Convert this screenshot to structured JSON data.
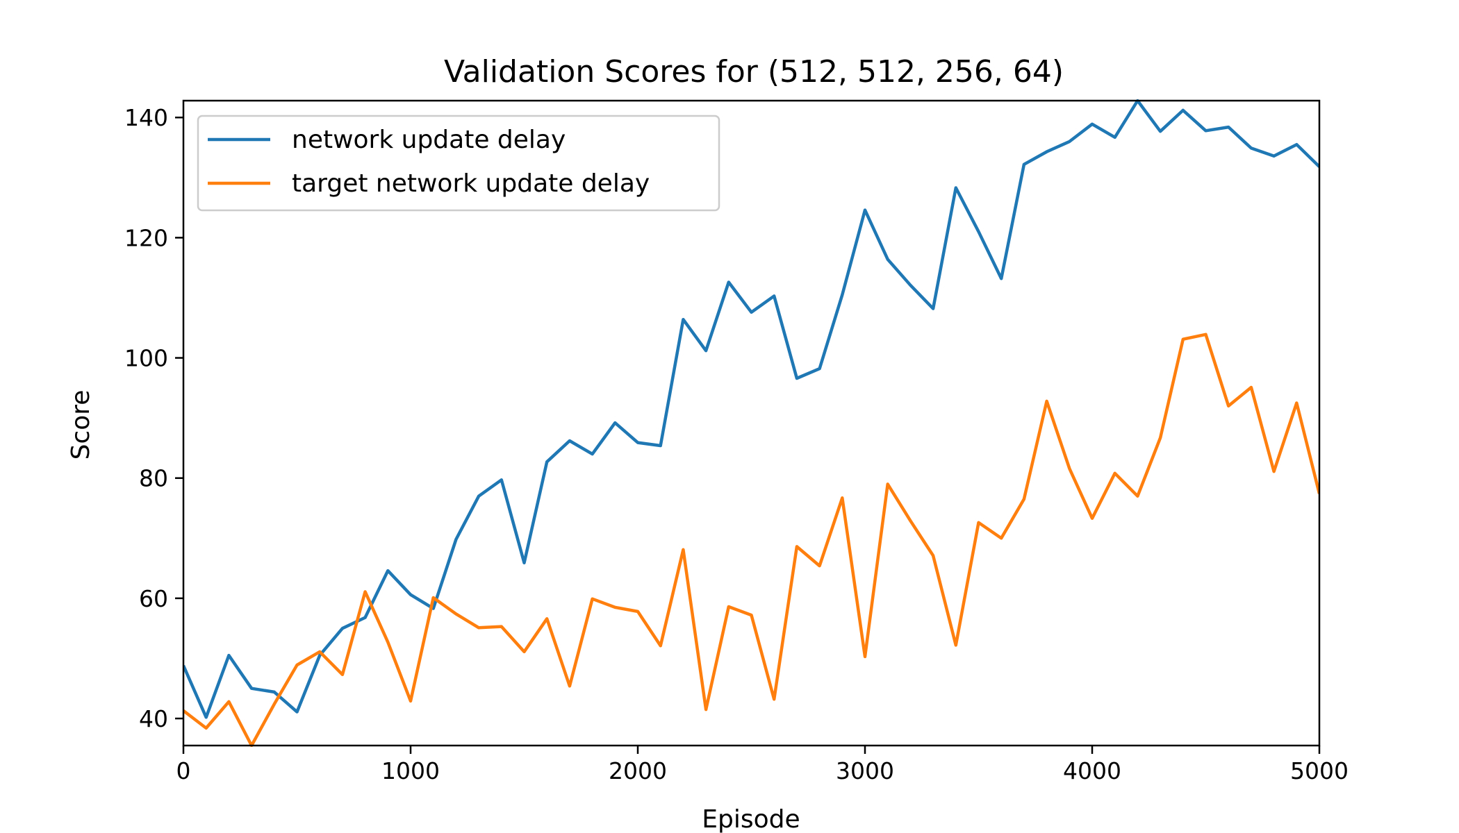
{
  "chart_data": {
    "type": "line",
    "title": "Validation Scores for (512, 512, 256, 64)",
    "xlabel": "Episode",
    "ylabel": "Score",
    "xlim": [
      0,
      5000
    ],
    "ylim": [
      35.5,
      142.8
    ],
    "xticks": [
      0,
      1000,
      2000,
      3000,
      4000,
      5000
    ],
    "yticks": [
      40,
      60,
      80,
      100,
      120,
      140
    ],
    "grid": false,
    "legend_position": "top-left",
    "x": [
      0,
      100,
      200,
      300,
      400,
      500,
      600,
      700,
      800,
      900,
      1000,
      1100,
      1200,
      1300,
      1400,
      1500,
      1600,
      1700,
      1800,
      1900,
      2000,
      2100,
      2200,
      2300,
      2400,
      2500,
      2600,
      2700,
      2800,
      2900,
      3000,
      3100,
      3200,
      3300,
      3400,
      3500,
      3600,
      3700,
      3800,
      3900,
      4000,
      4100,
      4200,
      4300,
      4400,
      4500,
      4600,
      4700,
      4800,
      4900,
      5000
    ],
    "series": [
      {
        "name": "network update delay",
        "color": "#1f77b4",
        "values": [
          48.8,
          40.2,
          50.5,
          45.0,
          44.4,
          41.1,
          50.5,
          55.0,
          56.8,
          64.6,
          60.6,
          58.3,
          69.8,
          77.0,
          79.7,
          65.9,
          82.7,
          86.2,
          84.0,
          89.2,
          85.9,
          85.4,
          106.4,
          101.2,
          112.6,
          107.6,
          110.3,
          96.6,
          98.2,
          110.5,
          124.6,
          116.4,
          112.1,
          108.2,
          128.3,
          121.0,
          113.2,
          132.2,
          134.3,
          136.0,
          138.9,
          136.7,
          142.8,
          137.7,
          141.2,
          137.8,
          138.4,
          134.9,
          133.6,
          135.5,
          131.8
        ]
      },
      {
        "name": "target network update delay",
        "color": "#ff7f0e",
        "values": [
          41.3,
          38.4,
          42.8,
          35.5,
          42.4,
          48.9,
          51.1,
          47.3,
          61.1,
          52.7,
          42.9,
          60.1,
          57.4,
          55.1,
          55.3,
          51.1,
          56.6,
          45.4,
          59.9,
          58.5,
          57.8,
          52.1,
          68.1,
          41.5,
          58.6,
          57.2,
          43.2,
          68.6,
          65.4,
          76.7,
          50.3,
          79.0,
          72.9,
          67.1,
          52.2,
          72.6,
          70.0,
          76.5,
          92.8,
          81.6,
          73.3,
          80.8,
          77.0,
          86.7,
          103.1,
          103.9,
          92.0,
          95.1,
          81.1,
          92.5,
          77.4
        ]
      }
    ]
  }
}
